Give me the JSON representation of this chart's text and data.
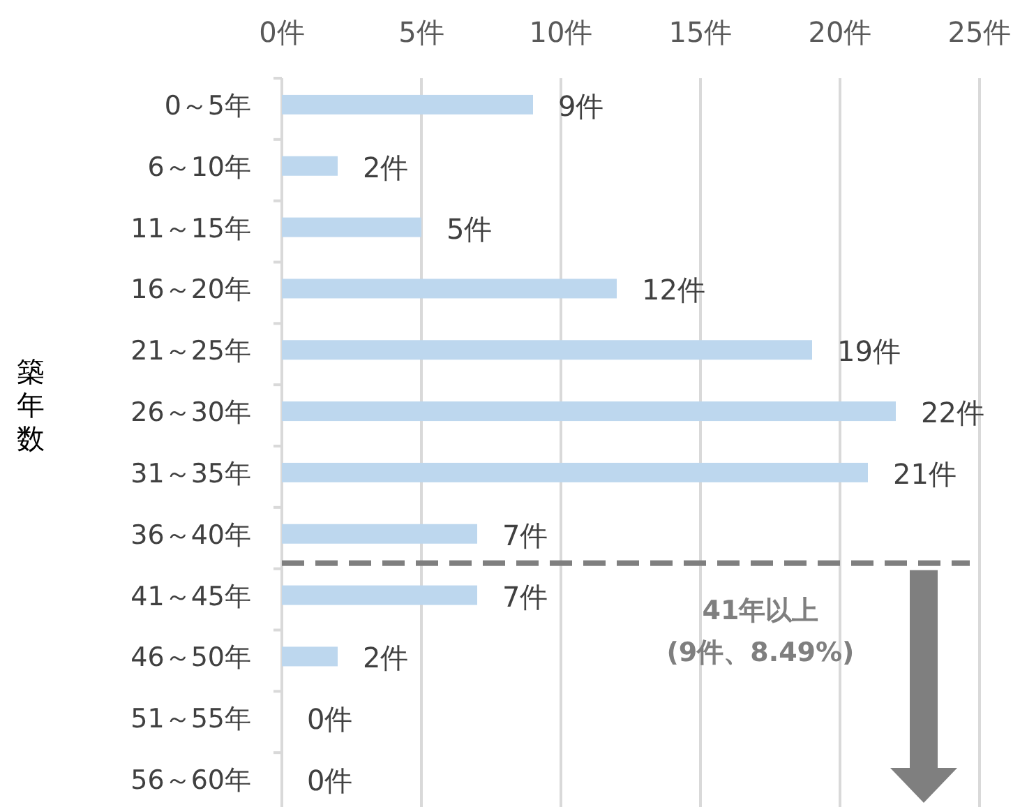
{
  "chart_data": {
    "type": "bar",
    "orientation": "horizontal",
    "ylabel": "築年数",
    "categories": [
      "0～5年",
      "6～10年",
      "11～15年",
      "16～20年",
      "21～25年",
      "26～30年",
      "31～35年",
      "36～40年",
      "41～45年",
      "46～50年",
      "51～55年",
      "56～60年"
    ],
    "values": [
      9,
      2,
      5,
      12,
      19,
      22,
      21,
      7,
      7,
      2,
      0,
      0
    ],
    "value_labels": [
      "9件",
      "2件",
      "5件",
      "12件",
      "19件",
      "22件",
      "21件",
      "7件",
      "7件",
      "2件",
      "0件",
      "0件"
    ],
    "color": "#bdd7ee",
    "xlim": [
      0,
      25
    ],
    "xticks": [
      {
        "value": 0,
        "label": "0件"
      },
      {
        "value": 5,
        "label": "5件"
      },
      {
        "value": 10,
        "label": "10件"
      },
      {
        "value": 15,
        "label": "15件"
      },
      {
        "value": 20,
        "label": "20件"
      },
      {
        "value": 25,
        "label": "25件"
      }
    ],
    "grid": "x",
    "annotations": [
      "41年以上\n(9件、8.49%)"
    ]
  }
}
